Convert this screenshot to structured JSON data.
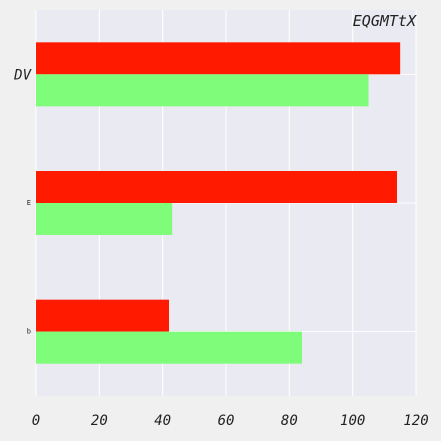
{
  "chart_data": {
    "type": "bar",
    "orientation": "horizontal",
    "title": "EQGMTtX",
    "categories": [
      "DV",
      "E",
      "b"
    ],
    "series": [
      {
        "values": [
          115,
          114,
          42
        ],
        "color": "#ff1a00"
      },
      {
        "values": [
          105,
          43,
          84
        ],
        "color": "#7ffc7a"
      }
    ],
    "xlim": [
      0,
      120
    ],
    "xticks": [
      0,
      20,
      40,
      60,
      80,
      100,
      120
    ],
    "grid": true,
    "plot_background": "#eaeaf2",
    "figure_background": "#f0f0f0"
  }
}
